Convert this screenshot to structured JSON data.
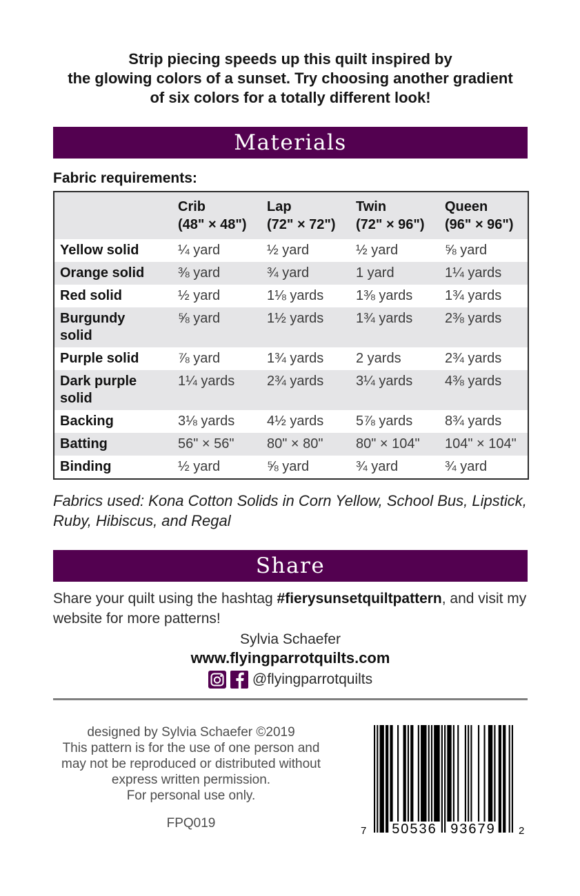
{
  "colors": {
    "accent": "#530150",
    "table_stripe": "#e5e5e7",
    "divider_gray": "#7f7f7f"
  },
  "intro": {
    "lines": [
      "Strip piecing speeds up this quilt inspired by",
      "the glowing colors of a sunset. Try choosing another gradient",
      "of six colors for a totally different look!"
    ]
  },
  "materials": {
    "heading": "Materials",
    "section_label": "Fabric requirements:",
    "table": {
      "size_columns": [
        {
          "name": "Crib",
          "dims": "(48\" × 48\")"
        },
        {
          "name": "Lap",
          "dims": "(72\" × 72\")"
        },
        {
          "name": "Twin",
          "dims": "(72\" × 96\")"
        },
        {
          "name": "Queen",
          "dims": "(96\" × 96\")"
        }
      ],
      "rows": [
        {
          "label": "Yellow solid",
          "values": [
            "¼ yard",
            "½ yard",
            "½ yard",
            "⅝ yard"
          ]
        },
        {
          "label": "Orange solid",
          "values": [
            "⅜ yard",
            "¾ yard",
            "1 yard",
            "1¼ yards"
          ]
        },
        {
          "label": "Red solid",
          "values": [
            "½ yard",
            "1⅛ yards",
            "1⅜ yards",
            "1¾ yards"
          ]
        },
        {
          "label": "Burgundy\nsolid",
          "values": [
            "⅝ yard",
            "1½ yards",
            "1¾ yards",
            "2⅜ yards"
          ]
        },
        {
          "label": "Purple solid",
          "values": [
            "⅞ yard",
            "1¾ yards",
            "2 yards",
            "2¾ yards"
          ]
        },
        {
          "label": "Dark purple\nsolid",
          "values": [
            "1¼ yards",
            "2¾ yards",
            "3¼ yards",
            "4⅜ yards"
          ]
        },
        {
          "label": "Backing",
          "values": [
            "3⅛ yards",
            "4½ yards",
            "5⅞ yards",
            "8¾ yards"
          ]
        },
        {
          "label": "Batting",
          "values": [
            "56\" × 56\"",
            "80\" × 80\"",
            "80\" × 104\"",
            "104\" × 104\""
          ]
        },
        {
          "label": "Binding",
          "values": [
            "½ yard",
            "⅝ yard",
            "¾ yard",
            "¾ yard"
          ]
        }
      ]
    },
    "note_lines": [
      "Fabrics used: Kona Cotton Solids in Corn Yellow, School Bus, Lipstick,",
      "Ruby, Hibiscus, and Regal"
    ]
  },
  "share": {
    "heading": "Share",
    "text_before": "Share your quilt using the hashtag ",
    "hashtag": "#fierysunsetquiltpattern",
    "text_after": ", and visit my website for more patterns!",
    "author": "Sylvia Schaefer",
    "website": "www.flyingparrotquilts.com",
    "handle": "@flyingparrotquilts",
    "icons": [
      "instagram-icon",
      "facebook-icon"
    ]
  },
  "footer": {
    "legal_lines": [
      "designed by Sylvia Schaefer ©2019",
      "This pattern is for the use of one person and",
      "may not be reproduced or distributed without",
      "express written permission.",
      "For personal use only."
    ],
    "pattern_number": "FPQ019",
    "barcode": {
      "digits": "750536936792",
      "left_digit": "7",
      "group1": "50536",
      "group2": "93679",
      "right_digit": "2"
    }
  }
}
